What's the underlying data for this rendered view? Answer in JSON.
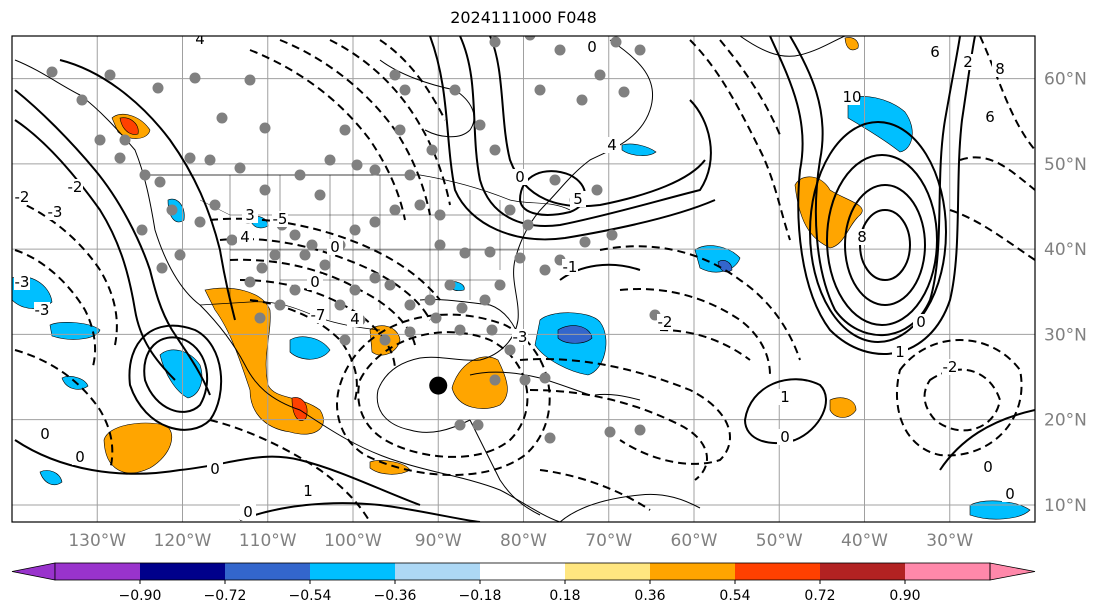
{
  "title": "2024111000 F048",
  "map": {
    "lon_range": [
      -140,
      -20
    ],
    "lat_range": [
      8,
      65
    ],
    "lon_labels": [
      "130°W",
      "120°W",
      "110°W",
      "100°W",
      "90°W",
      "80°W",
      "70°W",
      "60°W",
      "50°W",
      "40°W",
      "30°W"
    ],
    "lat_labels": [
      "60°N",
      "50°N",
      "40°N",
      "30°N",
      "20°N",
      "10°N"
    ],
    "grid_color": "#a0a0a0",
    "label_color": "#808080",
    "marker": {
      "lon": -90,
      "lat": 24,
      "color": "#000000"
    },
    "contour_labels": [
      "-3",
      "-2",
      "-1",
      "0",
      "1",
      "2",
      "3",
      "4",
      "5",
      "6",
      "8",
      "10",
      "-5",
      "-7"
    ],
    "colorbar": {
      "ticks": [
        "−0.90",
        "−0.72",
        "−0.54",
        "−0.36",
        "−0.18",
        "0.18",
        "0.36",
        "0.54",
        "0.72",
        "0.90"
      ],
      "colors": [
        "#9933cc",
        "#00008b",
        "#3366cc",
        "#00bfff",
        "#add8f5",
        "#ffffff",
        "#ffe680",
        "#ffa500",
        "#ff4000",
        "#b22222",
        "#ff88aa"
      ],
      "under_color": "#9933cc",
      "over_color": "#ff88aa"
    }
  }
}
